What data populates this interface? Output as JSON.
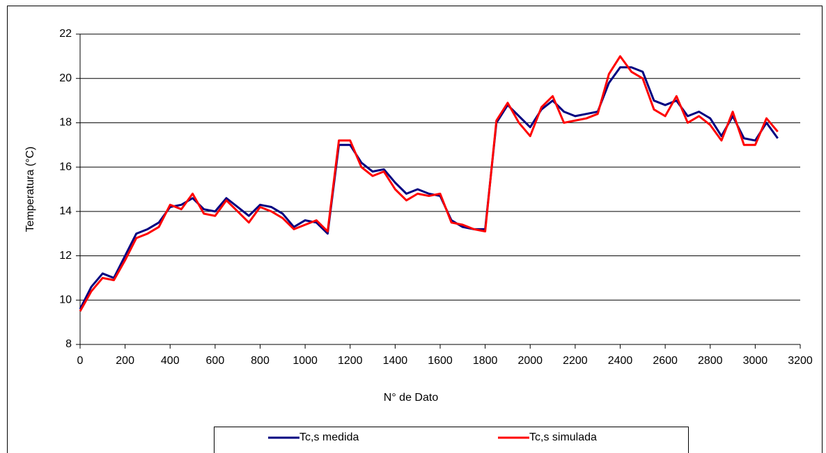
{
  "chart_data": {
    "type": "line",
    "x_label": "N° de Dato",
    "y_label": "Temperatura (°C)",
    "x": [
      0,
      50,
      100,
      150,
      200,
      250,
      300,
      350,
      400,
      450,
      500,
      550,
      600,
      650,
      700,
      750,
      800,
      850,
      900,
      950,
      1000,
      1050,
      1100,
      1150,
      1200,
      1250,
      1300,
      1350,
      1400,
      1450,
      1500,
      1550,
      1600,
      1650,
      1700,
      1750,
      1800,
      1850,
      1900,
      1950,
      2000,
      2050,
      2100,
      2150,
      2200,
      2250,
      2300,
      2350,
      2400,
      2450,
      2500,
      2550,
      2600,
      2650,
      2700,
      2750,
      2800,
      2850,
      2900,
      2950,
      3000,
      3050,
      3100
    ],
    "series": [
      {
        "name": "Tc,s medida",
        "color": "#000080",
        "values": [
          9.6,
          10.6,
          11.2,
          11.0,
          12.0,
          13.0,
          13.2,
          13.5,
          14.2,
          14.3,
          14.6,
          14.1,
          14.0,
          14.6,
          14.2,
          13.8,
          14.3,
          14.2,
          13.9,
          13.3,
          13.6,
          13.5,
          13.0,
          17.0,
          17.0,
          16.2,
          15.8,
          15.9,
          15.3,
          14.8,
          15.0,
          14.8,
          14.7,
          13.6,
          13.3,
          13.2,
          13.2,
          18.0,
          18.8,
          18.3,
          17.8,
          18.6,
          19.0,
          18.5,
          18.3,
          18.4,
          18.5,
          19.8,
          20.5,
          20.5,
          20.3,
          19.0,
          18.8,
          19.0,
          18.3,
          18.5,
          18.2,
          17.4,
          18.3,
          17.3,
          17.2,
          18.0,
          17.3
        ]
      },
      {
        "name": "Tc,s simulada",
        "color": "#ff0000",
        "values": [
          9.5,
          10.4,
          11.0,
          10.9,
          11.8,
          12.8,
          13.0,
          13.3,
          14.3,
          14.1,
          14.8,
          13.9,
          13.8,
          14.5,
          14.0,
          13.5,
          14.2,
          14.0,
          13.7,
          13.2,
          13.4,
          13.6,
          13.1,
          17.2,
          17.2,
          16.0,
          15.6,
          15.8,
          15.0,
          14.5,
          14.8,
          14.7,
          14.8,
          13.5,
          13.4,
          13.2,
          13.1,
          18.1,
          18.9,
          18.0,
          17.4,
          18.7,
          19.2,
          18.0,
          18.1,
          18.2,
          18.4,
          20.2,
          21.0,
          20.3,
          20.0,
          18.6,
          18.3,
          19.2,
          18.0,
          18.3,
          17.9,
          17.2,
          18.5,
          17.0,
          17.0,
          18.2,
          17.6
        ]
      }
    ],
    "xlim": [
      0,
      3200
    ],
    "xticks": [
      0,
      200,
      400,
      600,
      800,
      1000,
      1200,
      1400,
      1600,
      1800,
      2000,
      2200,
      2400,
      2600,
      2800,
      3000,
      3200
    ],
    "ylim": [
      8,
      22
    ],
    "yticks": [
      8,
      10,
      12,
      14,
      16,
      18,
      20,
      22
    ],
    "grid": true,
    "legend": "bottom"
  }
}
